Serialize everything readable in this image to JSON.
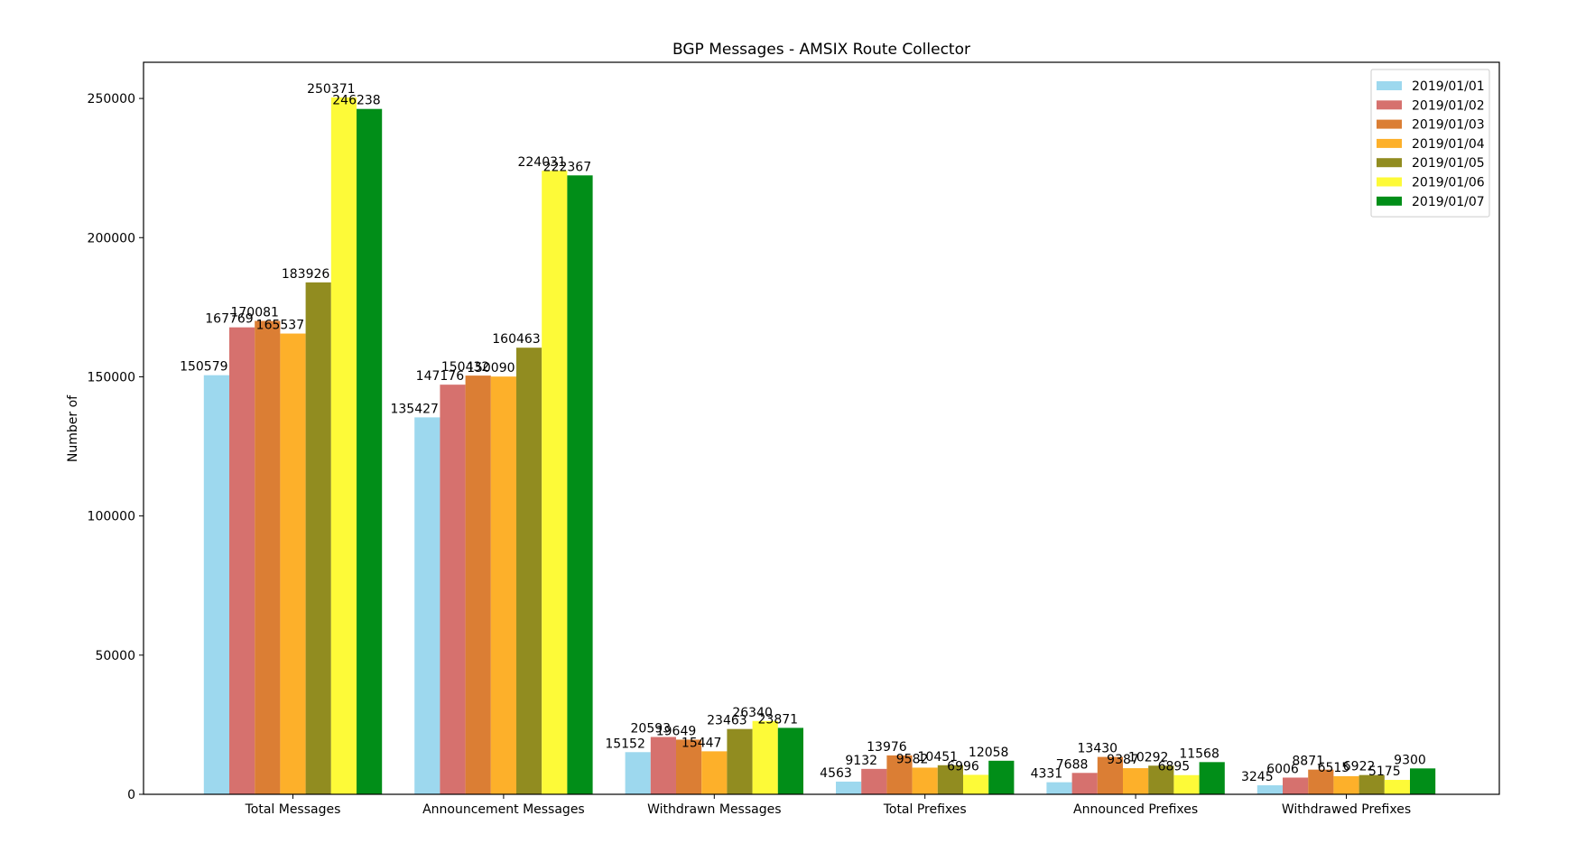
{
  "chart_data": {
    "type": "bar",
    "title": "BGP Messages - AMSIX Route Collector",
    "xlabel": "",
    "ylabel": "Number of",
    "ylim": [
      0,
      263000
    ],
    "yticks": [
      0,
      50000,
      100000,
      150000,
      200000,
      250000
    ],
    "grid": false,
    "legend_position": "top-right",
    "categories": [
      "Total Messages",
      "Announcement Messages",
      "Withdrawn Messages",
      "Total Prefixes",
      "Announced Prefixes",
      "Withdrawed Prefixes"
    ],
    "series": [
      {
        "name": "2019/01/01",
        "color": "#9dd8ee",
        "values": [
          150579,
          135427,
          15152,
          4563,
          4331,
          3245
        ]
      },
      {
        "name": "2019/01/02",
        "color": "#d6716e",
        "values": [
          167769,
          147176,
          20593,
          9132,
          7688,
          6006
        ]
      },
      {
        "name": "2019/01/03",
        "color": "#db7e34",
        "values": [
          170081,
          150432,
          19649,
          13976,
          13430,
          8871
        ]
      },
      {
        "name": "2019/01/04",
        "color": "#fdb02a",
        "values": [
          165537,
          150090,
          15447,
          9582,
          9387,
          6515
        ]
      },
      {
        "name": "2019/01/05",
        "color": "#918c20",
        "values": [
          183926,
          160463,
          23463,
          10451,
          10292,
          6922
        ]
      },
      {
        "name": "2019/01/06",
        "color": "#fdfa38",
        "values": [
          250371,
          224031,
          26340,
          6996,
          6895,
          5175
        ]
      },
      {
        "name": "2019/01/07",
        "color": "#018e18",
        "values": [
          246238,
          222367,
          23871,
          12058,
          11568,
          9300
        ]
      }
    ]
  }
}
